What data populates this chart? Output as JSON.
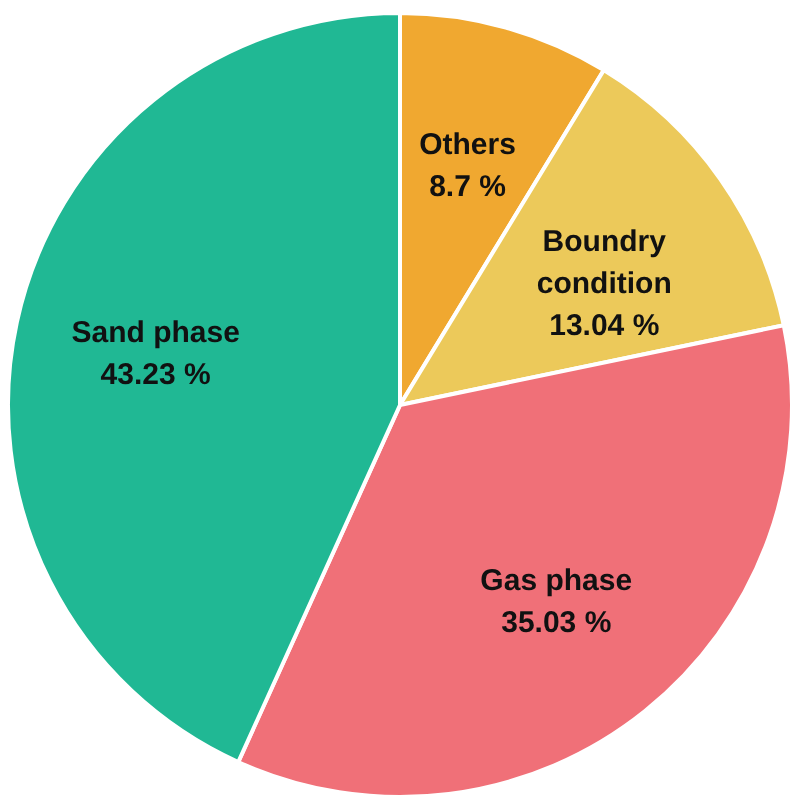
{
  "chart_data": {
    "type": "pie",
    "categories": [
      "Others",
      "Boundry condition",
      "Gas phase",
      "Sand phase"
    ],
    "values": [
      8.7,
      13.04,
      35.03,
      43.23
    ],
    "value_labels": [
      "8.7 %",
      "13.04 %",
      "35.03 %",
      "43.23 %"
    ],
    "colors": [
      "#f0a830",
      "#ecc95a",
      "#f07078",
      "#20b894"
    ]
  }
}
